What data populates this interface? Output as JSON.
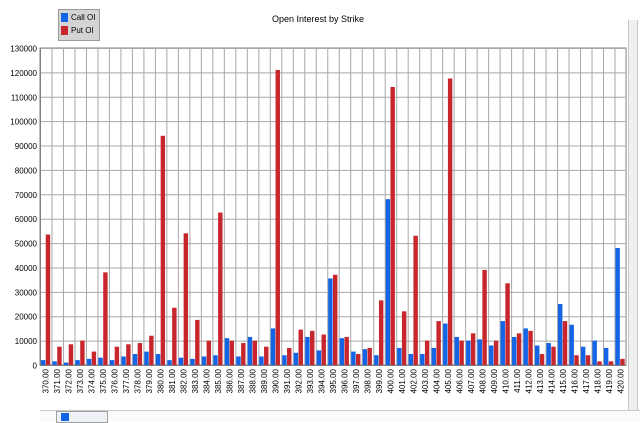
{
  "chart_data": {
    "type": "bar",
    "title": "Open Interest by Strike",
    "xlabel": "",
    "ylabel": "",
    "ylim": [
      0,
      130000
    ],
    "yticks": [
      0,
      10000,
      20000,
      30000,
      40000,
      50000,
      60000,
      70000,
      80000,
      90000,
      100000,
      110000,
      120000,
      130000
    ],
    "grid": true,
    "legend_position": "top-left",
    "categories": [
      "370.00",
      "371.00",
      "372.00",
      "373.00",
      "374.00",
      "375.00",
      "376.00",
      "377.00",
      "378.00",
      "379.00",
      "380.00",
      "381.00",
      "382.00",
      "383.00",
      "384.00",
      "385.00",
      "386.00",
      "387.00",
      "388.00",
      "389.00",
      "390.00",
      "391.00",
      "392.00",
      "393.00",
      "394.00",
      "395.00",
      "396.00",
      "397.00",
      "398.00",
      "399.00",
      "400.00",
      "401.00",
      "402.00",
      "403.00",
      "404.00",
      "405.00",
      "406.00",
      "407.00",
      "408.00",
      "409.00",
      "410.00",
      "411.00",
      "412.00",
      "413.00",
      "414.00",
      "415.00",
      "416.00",
      "417.00",
      "418.00",
      "419.00",
      "420.00"
    ],
    "series": [
      {
        "name": "Call OI",
        "color": "#1464e6",
        "values": [
          2000,
          1500,
          1000,
          2000,
          2500,
          3000,
          2000,
          3500,
          4500,
          5500,
          4500,
          2000,
          3000,
          2500,
          3500,
          4000,
          11000,
          3500,
          11500,
          3500,
          15000,
          4000,
          5000,
          11500,
          6000,
          35500,
          11000,
          5500,
          6500,
          4000,
          68000,
          7000,
          4500,
          4500,
          7000,
          17000,
          11500,
          10000,
          10500,
          8000,
          18000,
          11500,
          15000,
          8000,
          9000,
          25000,
          16500,
          7500,
          10000,
          7000,
          48000
        ]
      },
      {
        "name": "Put OI",
        "color": "#c8262d",
        "values": [
          53500,
          7500,
          8500,
          10000,
          5500,
          38000,
          7500,
          8500,
          9000,
          12000,
          94000,
          23500,
          54000,
          18500,
          10000,
          62500,
          10000,
          9000,
          10000,
          7500,
          121000,
          7000,
          14500,
          14000,
          12500,
          37000,
          11500,
          4500,
          7000,
          26500,
          114000,
          22000,
          53000,
          10000,
          18000,
          117500,
          10000,
          13000,
          39000,
          10000,
          33500,
          13000,
          14000,
          4500,
          7500,
          18000,
          4000,
          4000,
          1500,
          1500,
          2500
        ]
      }
    ]
  }
}
